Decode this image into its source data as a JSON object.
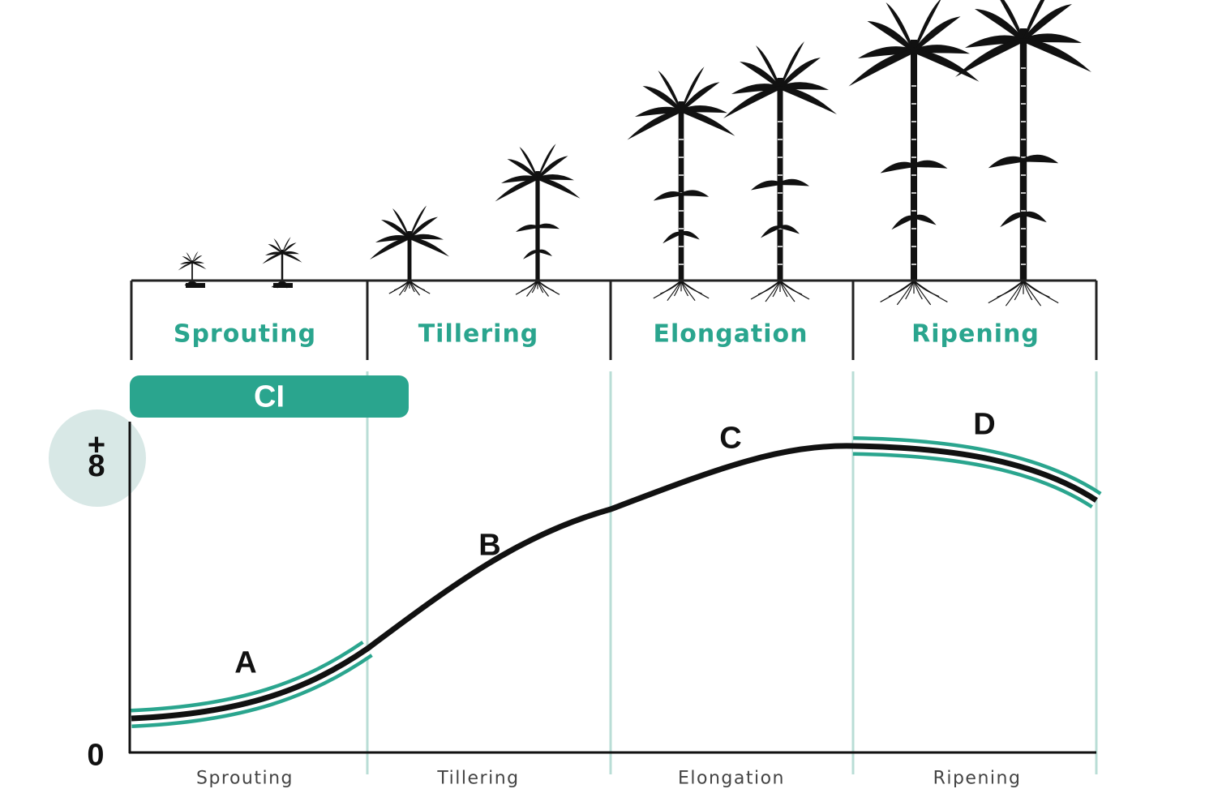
{
  "stage_headers": [
    "Sprouting",
    "Tillering",
    "Elongation",
    "Ripening"
  ],
  "badge": "CI",
  "y_axis": {
    "top": "+8",
    "bottom": "0"
  },
  "curve_labels": [
    "A",
    "B",
    "C",
    "D"
  ],
  "stage_axis_labels": [
    "Sprouting",
    "Tillering",
    "Elongation",
    "Ripening"
  ]
}
